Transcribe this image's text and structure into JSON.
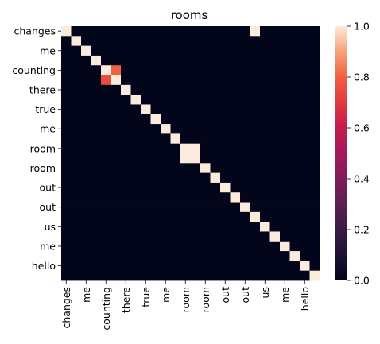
{
  "chart_data": {
    "type": "heatmap",
    "title": "rooms",
    "xlabel": "",
    "ylabel": "",
    "labels_all": [
      "changes",
      "",
      "me",
      "",
      "counting",
      "",
      "there",
      "",
      "true",
      "",
      "me",
      "",
      "room",
      "",
      "room",
      "",
      "out",
      "",
      "out",
      "",
      "us",
      "",
      "me",
      "",
      "hello",
      ""
    ],
    "x_tick_labels": [
      "changes",
      "me",
      "counting",
      "there",
      "true",
      "me",
      "room",
      "room",
      "out",
      "out",
      "us",
      "me",
      "hello"
    ],
    "y_tick_labels": [
      "changes",
      "me",
      "counting",
      "there",
      "true",
      "me",
      "room",
      "room",
      "out",
      "out",
      "us",
      "me",
      "hello"
    ],
    "colorbar": {
      "vmin": 0.0,
      "vmax": 1.0,
      "ticks": [
        "0.0",
        "0.2",
        "0.4",
        "0.6",
        "0.8",
        "1.0"
      ]
    },
    "values": [
      [
        1,
        0,
        0,
        0,
        0,
        0,
        0,
        0,
        0,
        0,
        0,
        0,
        0,
        0,
        0,
        0,
        0,
        0,
        0,
        1,
        0,
        0,
        0,
        0,
        0,
        0
      ],
      [
        0,
        1,
        0,
        0,
        0,
        0,
        0,
        0,
        0,
        0,
        0,
        0,
        0,
        0,
        0,
        0,
        0,
        0,
        0,
        0,
        0,
        0,
        0,
        0,
        0,
        0
      ],
      [
        0,
        0,
        1,
        0,
        0,
        0,
        0,
        0,
        0,
        0,
        0,
        0,
        0,
        0,
        0,
        0,
        0,
        0,
        0,
        0,
        0,
        0,
        0,
        0,
        0,
        0
      ],
      [
        0,
        0,
        0,
        1,
        0,
        0,
        0,
        0,
        0,
        0,
        0,
        0,
        0,
        0,
        0,
        0,
        0,
        0,
        0,
        0,
        0,
        0,
        0,
        0,
        0,
        0
      ],
      [
        0,
        0,
        0,
        0,
        1,
        0.8,
        0,
        0,
        0,
        0,
        0,
        0,
        0,
        0,
        0,
        0,
        0,
        0,
        0,
        0,
        0,
        0,
        0,
        0,
        0,
        0
      ],
      [
        0,
        0,
        0,
        0,
        0.75,
        1,
        0,
        0,
        0,
        0,
        0,
        0,
        0,
        0,
        0,
        0,
        0,
        0,
        0,
        0,
        0,
        0,
        0,
        0,
        0,
        0
      ],
      [
        0,
        0,
        0,
        0,
        0,
        0,
        1,
        0,
        0,
        0,
        0,
        0,
        0,
        0,
        0,
        0,
        0,
        0,
        0,
        0,
        0,
        0,
        0,
        0,
        0,
        0
      ],
      [
        0,
        0,
        0,
        0,
        0,
        0,
        0,
        1,
        0,
        0,
        0,
        0,
        0,
        0,
        0,
        0,
        0,
        0,
        0,
        0,
        0,
        0,
        0,
        0,
        0,
        0
      ],
      [
        0,
        0,
        0,
        0,
        0,
        0,
        0,
        0,
        1,
        0,
        0,
        0,
        0,
        0,
        0,
        0,
        0,
        0,
        0,
        0,
        0,
        0,
        0,
        0,
        0,
        0
      ],
      [
        0,
        0,
        0,
        0,
        0,
        0,
        0,
        0,
        0,
        1,
        0,
        0,
        0,
        0,
        0,
        0,
        0,
        0,
        0,
        0,
        0,
        0,
        0,
        0,
        0,
        0
      ],
      [
        0,
        0,
        0,
        0,
        0,
        0,
        0,
        0,
        0,
        0,
        1,
        0,
        0,
        0,
        0,
        0,
        0,
        0,
        0,
        0,
        0,
        0,
        0,
        0,
        0,
        0
      ],
      [
        0,
        0,
        0,
        0,
        0,
        0,
        0,
        0,
        0,
        0,
        0,
        1,
        0,
        0,
        0,
        0,
        0,
        0,
        0,
        0,
        0,
        0,
        0,
        0,
        0,
        0
      ],
      [
        0,
        0,
        0,
        0,
        0,
        0,
        0,
        0,
        0,
        0,
        0,
        0,
        1,
        1,
        0,
        0,
        0,
        0,
        0,
        0,
        0,
        0,
        0,
        0,
        0,
        0
      ],
      [
        0,
        0,
        0,
        0,
        0,
        0,
        0,
        0,
        0,
        0,
        0,
        0,
        1,
        1,
        0,
        0,
        0,
        0,
        0,
        0,
        0,
        0,
        0,
        0,
        0,
        0
      ],
      [
        0,
        0,
        0,
        0,
        0,
        0,
        0,
        0,
        0,
        0,
        0,
        0,
        0,
        0,
        1,
        0,
        0,
        0,
        0,
        0,
        0,
        0,
        0,
        0,
        0,
        0
      ],
      [
        0,
        0,
        0,
        0,
        0,
        0,
        0,
        0,
        0,
        0,
        0,
        0,
        0,
        0,
        0,
        1,
        0,
        0,
        0,
        0,
        0,
        0,
        0,
        0,
        0,
        0
      ],
      [
        0,
        0,
        0,
        0,
        0,
        0,
        0,
        0,
        0,
        0,
        0,
        0,
        0,
        0,
        0,
        0,
        1,
        0,
        0,
        0,
        0,
        0,
        0,
        0,
        0,
        0
      ],
      [
        0,
        0,
        0,
        0,
        0,
        0,
        0,
        0,
        0,
        0,
        0,
        0,
        0,
        0,
        0,
        0,
        0,
        1,
        0,
        0,
        0,
        0,
        0,
        0,
        0,
        0
      ],
      [
        0,
        0,
        0,
        0,
        0,
        0,
        0,
        0,
        0,
        0,
        0,
        0,
        0,
        0,
        0,
        0,
        0,
        0,
        1,
        0,
        0,
        0,
        0,
        0,
        0,
        0
      ],
      [
        0,
        0,
        0,
        0,
        0,
        0,
        0,
        0,
        0,
        0,
        0,
        0,
        0,
        0,
        0,
        0,
        0,
        0,
        0,
        1,
        0,
        0,
        0,
        0,
        0,
        0
      ],
      [
        0,
        0,
        0,
        0,
        0,
        0,
        0,
        0,
        0,
        0,
        0,
        0,
        0,
        0,
        0,
        0,
        0,
        0,
        0,
        0,
        1,
        0,
        0,
        0,
        0,
        0
      ],
      [
        0,
        0,
        0,
        0,
        0,
        0,
        0,
        0,
        0,
        0,
        0,
        0,
        0,
        0,
        0,
        0,
        0,
        0,
        0,
        0,
        0,
        1,
        0,
        0,
        0,
        0
      ],
      [
        0,
        0,
        0,
        0,
        0,
        0,
        0,
        0,
        0,
        0,
        0,
        0,
        0,
        0,
        0,
        0,
        0,
        0,
        0,
        0,
        0,
        0,
        1,
        0,
        0,
        0
      ],
      [
        0,
        0,
        0,
        0,
        0,
        0,
        0,
        0,
        0,
        0,
        0,
        0,
        0,
        0,
        0,
        0,
        0,
        0,
        0,
        0,
        0,
        0,
        0,
        1,
        0,
        0
      ],
      [
        0,
        0,
        0,
        0,
        0,
        0,
        0,
        0,
        0,
        0,
        0,
        0,
        0,
        0,
        0,
        0,
        0,
        0,
        0,
        0,
        0,
        0,
        0,
        0,
        1,
        0
      ],
      [
        0,
        0,
        0,
        0,
        0,
        0,
        0,
        0,
        0,
        0,
        0,
        0,
        0,
        0,
        0,
        0,
        0,
        0,
        0,
        0,
        0,
        0,
        0,
        0,
        0,
        1
      ]
    ]
  }
}
